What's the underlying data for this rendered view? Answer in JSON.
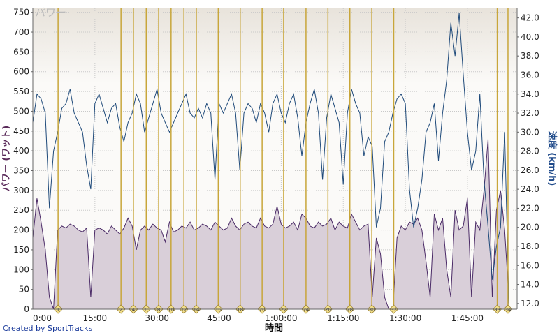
{
  "chart_data": {
    "type": "line",
    "watermark": "パワー",
    "xlabel": "時間",
    "ylabel_left": "パワー (ワット)",
    "ylabel_right": "速度 (km/h)",
    "x_ticks": [
      "0:00",
      "15:00",
      "30:00",
      "45:00",
      "1:00:00",
      "1:15:00",
      "1:30:00",
      "1:45:00"
    ],
    "x_tick_minutes": [
      0,
      15,
      30,
      45,
      60,
      75,
      90,
      105
    ],
    "xlim_minutes": [
      0,
      117
    ],
    "y_left_ticks": [
      0,
      50,
      100,
      150,
      200,
      250,
      300,
      350,
      400,
      450,
      500,
      550,
      600,
      650,
      700,
      750
    ],
    "y_left_lim": [
      0,
      760
    ],
    "y_right_ticks": [
      "12.0",
      "14.0",
      "16.0",
      "18.0",
      "20.0",
      "22.0",
      "24.0",
      "26.0",
      "28.0",
      "30.0",
      "32.0",
      "34.0",
      "36.0",
      "38.0",
      "40.0",
      "42.0"
    ],
    "y_right_lim": [
      11.4,
      43.0
    ],
    "grid": true,
    "laps": [
      {
        "label": "1",
        "minute": 6.1
      },
      {
        "label": "2",
        "minute": 21.3
      },
      {
        "label": "4",
        "minute": 24.3
      },
      {
        "label": "6",
        "minute": 27.4
      },
      {
        "label": "8",
        "minute": 30.4
      },
      {
        "label": "10",
        "minute": 33.4
      },
      {
        "label": "12",
        "minute": 36.5
      },
      {
        "label": "14",
        "minute": 39.5
      },
      {
        "label": "16",
        "minute": 44.8
      },
      {
        "label": "18",
        "minute": 50.1
      },
      {
        "label": "20",
        "minute": 55.4
      },
      {
        "label": "22",
        "minute": 60.6
      },
      {
        "label": "24",
        "minute": 66.0
      },
      {
        "label": "26",
        "minute": 71.3
      },
      {
        "label": "28",
        "minute": 76.6
      },
      {
        "label": "30",
        "minute": 81.9
      },
      {
        "label": "32",
        "minute": 87.2
      },
      {
        "label": "33",
        "minute": 112.2
      },
      {
        "label": "34",
        "minute": 114.8
      }
    ],
    "series": [
      {
        "name": "パワー",
        "axis": "left",
        "color": "#4a2a66",
        "fill": "#d9cfd9",
        "x": [
          0,
          1,
          2,
          3,
          4,
          5,
          6,
          7,
          8,
          9,
          10,
          11,
          12,
          13,
          14,
          15,
          16,
          17,
          18,
          19,
          20,
          21,
          22,
          23,
          24,
          25,
          26,
          27,
          28,
          29,
          30,
          31,
          32,
          33,
          34,
          35,
          36,
          37,
          38,
          39,
          40,
          41,
          42,
          43,
          44,
          45,
          46,
          47,
          48,
          49,
          50,
          51,
          52,
          53,
          54,
          55,
          56,
          57,
          58,
          59,
          60,
          61,
          62,
          63,
          64,
          65,
          66,
          67,
          68,
          69,
          70,
          71,
          72,
          73,
          74,
          75,
          76,
          77,
          78,
          79,
          80,
          81,
          82,
          83,
          84,
          85,
          86,
          87,
          88,
          89,
          90,
          91,
          92,
          93,
          94,
          95,
          96,
          97,
          98,
          99,
          100,
          101,
          102,
          103,
          104,
          105,
          106,
          107,
          108,
          109,
          110,
          111,
          112,
          113,
          114,
          115
        ],
        "values": [
          180,
          280,
          220,
          150,
          30,
          0,
          200,
          210,
          205,
          215,
          210,
          200,
          195,
          205,
          30,
          200,
          205,
          200,
          190,
          210,
          200,
          190,
          205,
          230,
          210,
          150,
          200,
          210,
          200,
          215,
          205,
          200,
          170,
          220,
          195,
          200,
          210,
          205,
          220,
          200,
          205,
          215,
          210,
          200,
          220,
          210,
          200,
          205,
          230,
          210,
          200,
          215,
          220,
          210,
          205,
          230,
          210,
          205,
          215,
          260,
          215,
          205,
          210,
          220,
          200,
          240,
          230,
          210,
          205,
          220,
          210,
          215,
          230,
          200,
          220,
          210,
          205,
          240,
          220,
          200,
          210,
          215,
          30,
          180,
          140,
          30,
          0,
          0,
          180,
          210,
          200,
          220,
          215,
          230,
          200,
          120,
          30,
          240,
          200,
          230,
          100,
          30,
          250,
          200,
          210,
          280,
          30,
          220,
          200,
          300,
          430,
          30,
          250,
          300,
          200,
          30
        ]
      },
      {
        "name": "速度",
        "axis": "right",
        "color": "#1f4a7a",
        "x": [
          0,
          1,
          2,
          3,
          4,
          5,
          6,
          7,
          8,
          9,
          10,
          11,
          12,
          13,
          14,
          15,
          16,
          17,
          18,
          19,
          20,
          21,
          22,
          23,
          24,
          25,
          26,
          27,
          28,
          29,
          30,
          31,
          32,
          33,
          34,
          35,
          36,
          37,
          38,
          39,
          40,
          41,
          42,
          43,
          44,
          45,
          46,
          47,
          48,
          49,
          50,
          51,
          52,
          53,
          54,
          55,
          56,
          57,
          58,
          59,
          60,
          61,
          62,
          63,
          64,
          65,
          66,
          67,
          68,
          69,
          70,
          71,
          72,
          73,
          74,
          75,
          76,
          77,
          78,
          79,
          80,
          81,
          82,
          83,
          84,
          85,
          86,
          87,
          88,
          89,
          90,
          91,
          92,
          93,
          94,
          95,
          96,
          97,
          98,
          99,
          100,
          101,
          102,
          103,
          104,
          105,
          106,
          107,
          108,
          109,
          110,
          111,
          112,
          113,
          114,
          115
        ],
        "values": [
          31.0,
          34.0,
          33.5,
          32.0,
          22.0,
          28.0,
          30.0,
          32.5,
          33.0,
          34.5,
          32.0,
          31.0,
          30.0,
          26.5,
          24.0,
          33.0,
          34.0,
          32.5,
          31.0,
          32.5,
          33.0,
          30.5,
          29.0,
          31.0,
          32.0,
          34.0,
          33.0,
          30.0,
          31.5,
          33.0,
          34.5,
          32.0,
          31.0,
          30.0,
          31.0,
          32.0,
          33.0,
          34.0,
          32.0,
          31.5,
          32.5,
          31.5,
          33.0,
          32.0,
          25.0,
          33.0,
          32.0,
          33.0,
          34.0,
          32.0,
          26.0,
          32.0,
          33.0,
          32.5,
          31.0,
          33.0,
          32.0,
          30.0,
          33.0,
          34.0,
          32.0,
          31.0,
          33.0,
          34.0,
          31.5,
          27.5,
          31.0,
          33.0,
          34.5,
          32.0,
          25.0,
          31.5,
          34.0,
          32.5,
          31.0,
          24.5,
          32.0,
          34.5,
          33.0,
          32.0,
          27.5,
          29.5,
          28.5,
          20.0,
          22.0,
          29.0,
          30.0,
          32.0,
          33.5,
          34.0,
          33.0,
          24.0,
          20.0,
          22.0,
          25.0,
          30.0,
          31.0,
          33.0,
          27.0,
          32.0,
          35.5,
          41.5,
          38.0,
          42.5,
          36.0,
          30.0,
          26.0,
          28.0,
          34.0,
          25.0,
          20.0,
          14.5,
          18.0,
          20.0,
          30.0,
          12.0
        ]
      }
    ]
  },
  "colors": {
    "plot_bg_top": "#e8e3db",
    "plot_bg_bottom": "#fbfaf8",
    "lap_line": "#c8a63a",
    "lap_marker_fill": "#f2df8a",
    "left_axis_title": "#5a2a5a",
    "right_axis_title": "#1f4a8a"
  },
  "credit": "Created by SportTracks"
}
